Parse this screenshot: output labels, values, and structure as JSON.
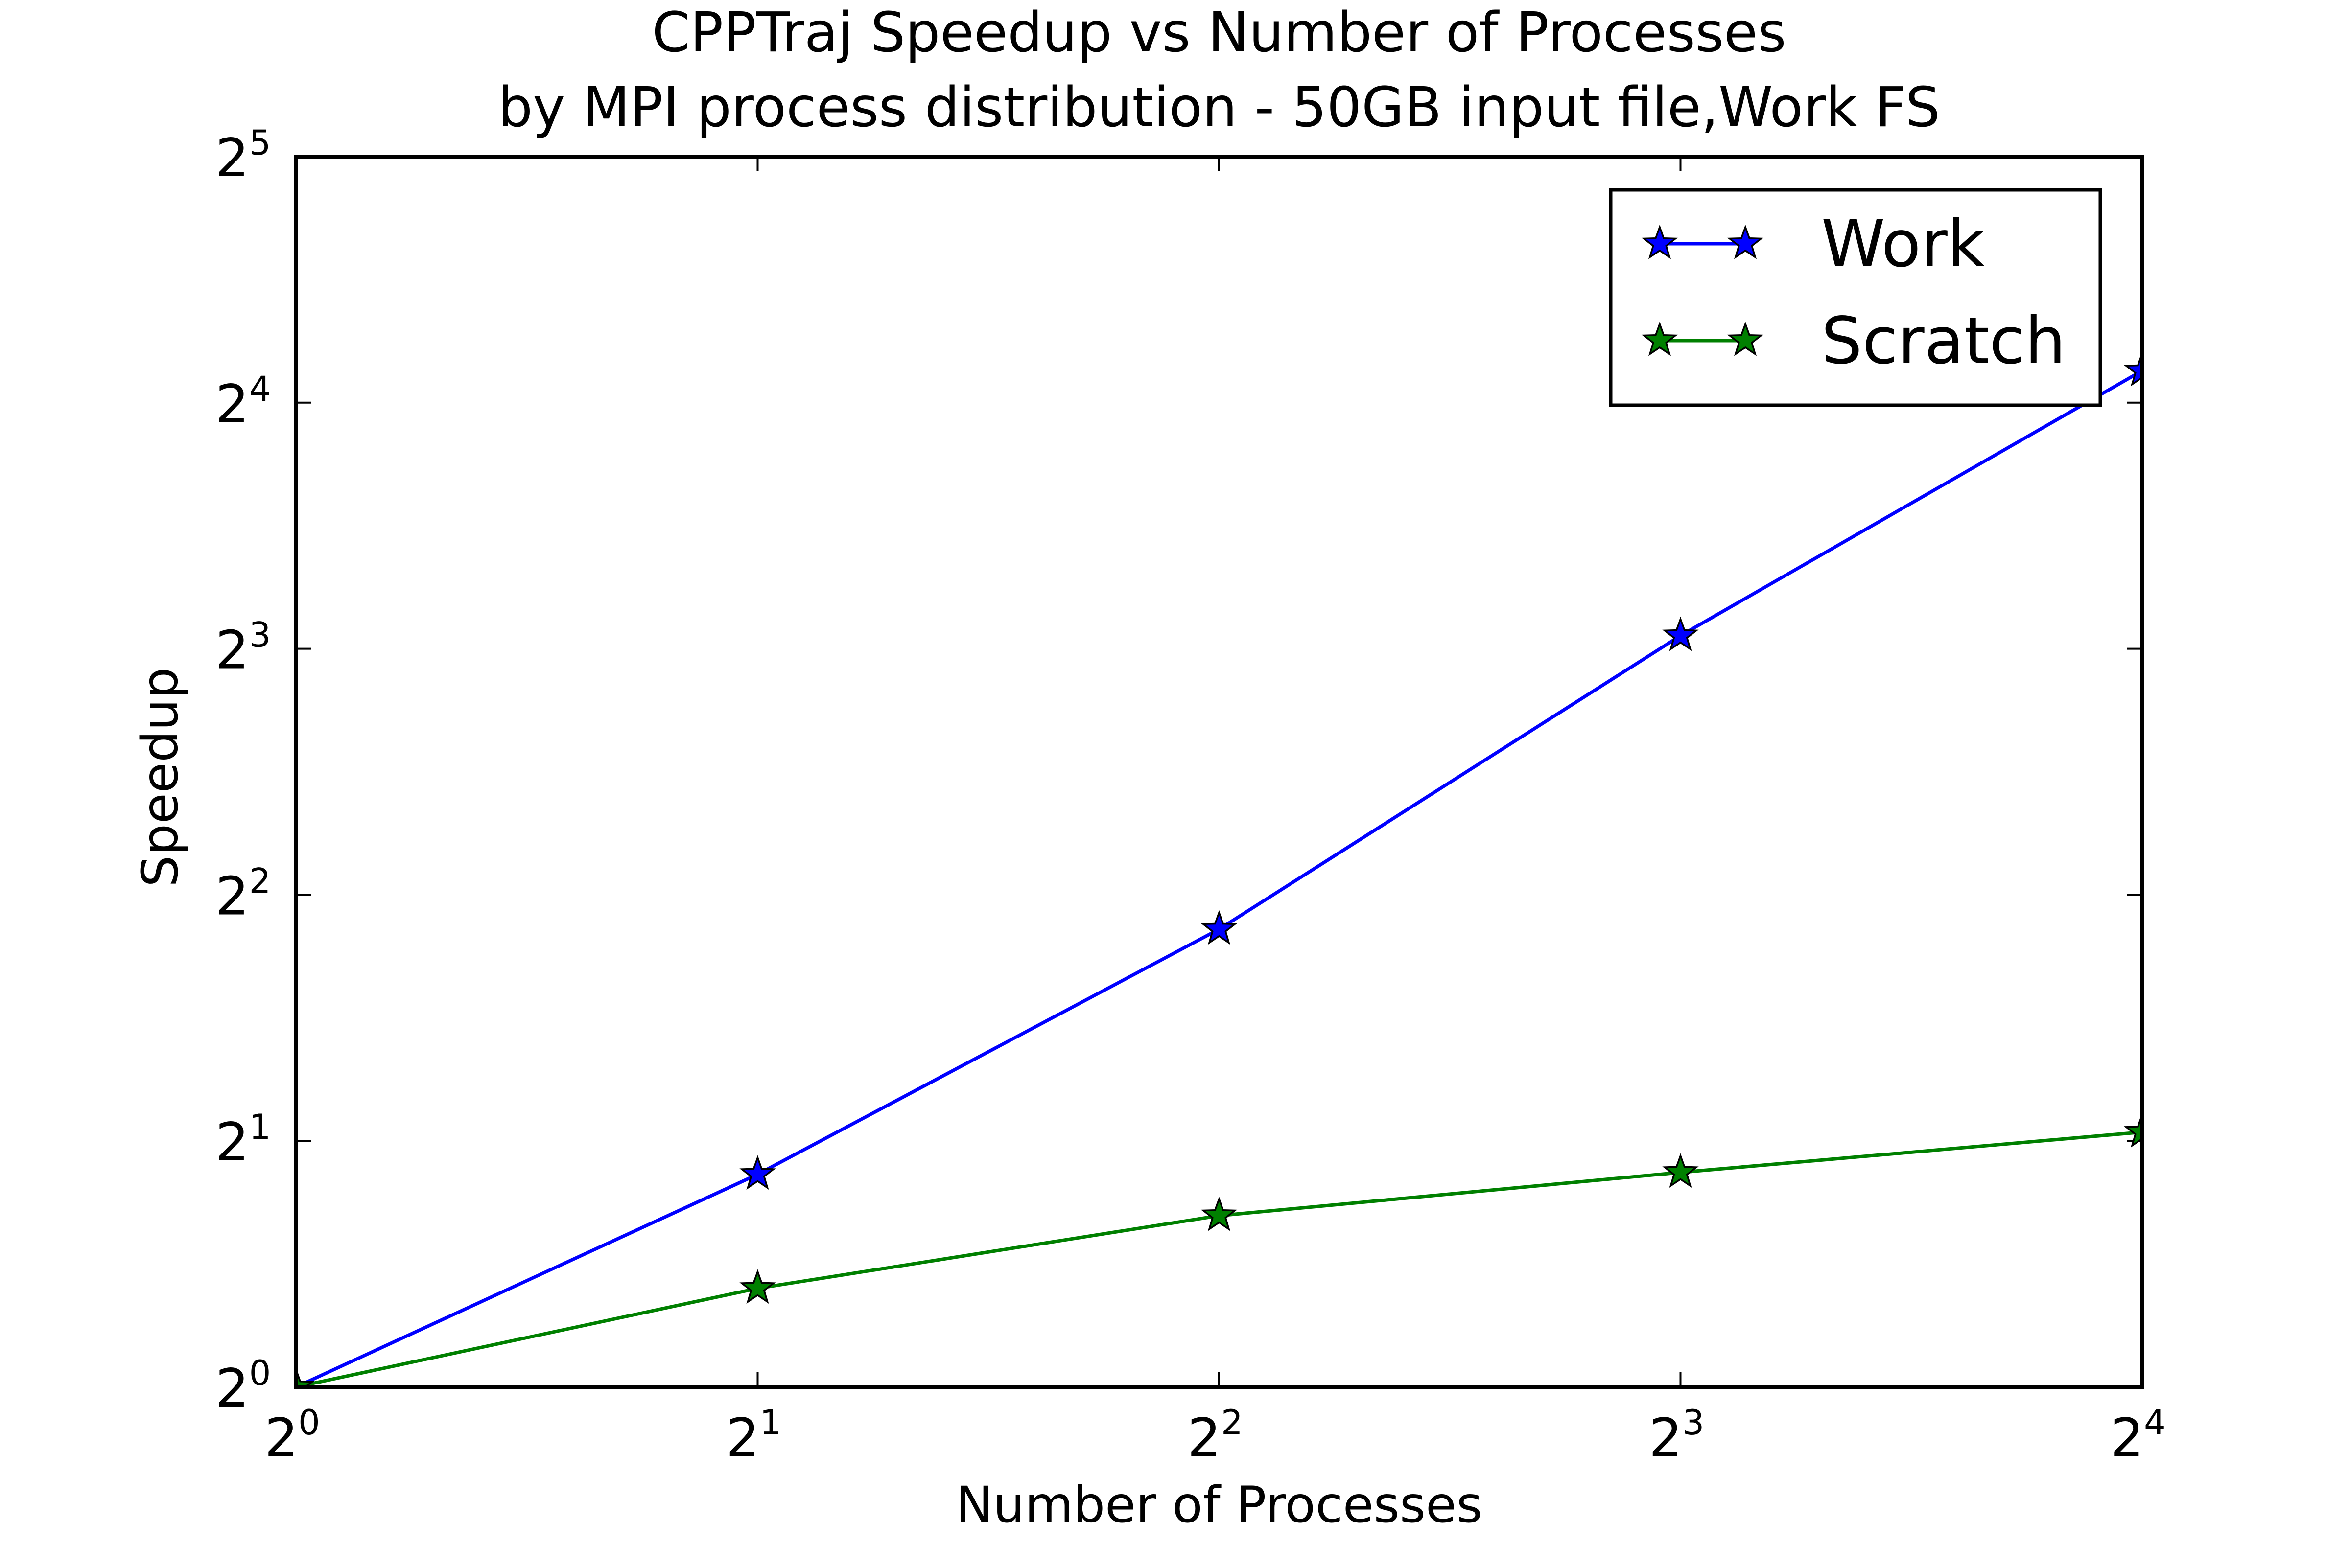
{
  "chart_data": {
    "type": "line",
    "title_lines": [
      "CPPTraj Speedup vs Number of Processes",
      "by MPI process distribution - 50GB input file,Work FS"
    ],
    "xlabel": "Number of Processes",
    "ylabel": "Speedup",
    "x_scale": "log2",
    "y_scale": "log2",
    "xlim": [
      1,
      16
    ],
    "ylim": [
      1,
      32
    ],
    "x_ticks": [
      {
        "base": "2",
        "exp": "0",
        "value": 1
      },
      {
        "base": "2",
        "exp": "1",
        "value": 2
      },
      {
        "base": "2",
        "exp": "2",
        "value": 4
      },
      {
        "base": "2",
        "exp": "3",
        "value": 8
      },
      {
        "base": "2",
        "exp": "4",
        "value": 16
      }
    ],
    "y_ticks": [
      {
        "base": "2",
        "exp": "0",
        "value": 1
      },
      {
        "base": "2",
        "exp": "1",
        "value": 2
      },
      {
        "base": "2",
        "exp": "2",
        "value": 4
      },
      {
        "base": "2",
        "exp": "3",
        "value": 8
      },
      {
        "base": "2",
        "exp": "4",
        "value": 16
      },
      {
        "base": "2",
        "exp": "5",
        "value": 32
      }
    ],
    "x": [
      1,
      2,
      4,
      8,
      16
    ],
    "series": [
      {
        "name": "Work",
        "color": "#0000ff",
        "marker": "star",
        "values": [
          1.0,
          1.82,
          3.63,
          8.3,
          17.5
        ]
      },
      {
        "name": "Scratch",
        "color": "#008000",
        "marker": "star",
        "values": [
          1.0,
          1.32,
          1.62,
          1.83,
          2.05
        ]
      }
    ],
    "legend_position": "top-right",
    "grid": false
  }
}
